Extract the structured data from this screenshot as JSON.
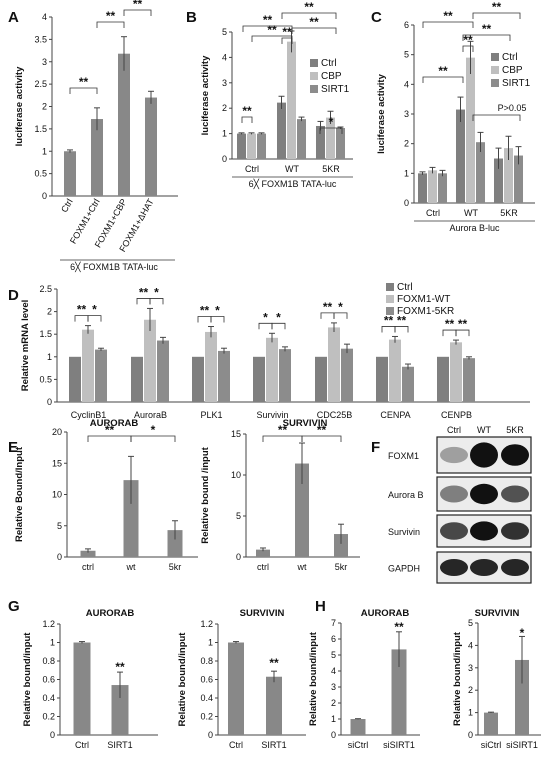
{
  "colors": {
    "dark": "#7f7f7f",
    "light": "#bfbfbf",
    "mid": "#8c8c8c",
    "plain": "#888888"
  },
  "chart_data": [
    {
      "id": "A",
      "type": "bar",
      "panel_label": "A",
      "ylabel": "luciferase activity",
      "ylim": [
        0,
        4
      ],
      "yticks": [
        "0",
        "0.5",
        "1",
        "1.5",
        "2",
        "2.5",
        "3",
        "3.5",
        "4"
      ],
      "categories": [
        "Ctrl",
        "FOXM1+Ctrl",
        "FOXM1+CBP",
        "FOXM1+ΔHAT"
      ],
      "values": [
        1.0,
        1.72,
        3.18,
        2.2
      ],
      "errors": [
        0.03,
        0.25,
        0.38,
        0.14
      ],
      "footer": "6╳ FOXM1B TATA-luc",
      "sig": [
        "**",
        "**",
        "**"
      ]
    },
    {
      "id": "B",
      "type": "bar",
      "panel_label": "B",
      "ylabel": "luciferase activity",
      "ylim": [
        0,
        5
      ],
      "yticks": [
        "0",
        "1",
        "2",
        "3",
        "4",
        "5"
      ],
      "groups": [
        "Ctrl",
        "WT",
        "5KR"
      ],
      "series": [
        {
          "name": "Ctrl",
          "values": [
            1.0,
            2.22,
            1.3
          ]
        },
        {
          "name": "CBP",
          "values": [
            1.0,
            4.62,
            1.63
          ]
        },
        {
          "name": "SIRT1",
          "values": [
            1.0,
            1.57,
            1.22
          ]
        }
      ],
      "errors": [
        [
          0.03,
          0.25,
          0.18
        ],
        [
          0.03,
          0.42,
          0.25
        ],
        [
          0.03,
          0.08,
          0.04
        ]
      ],
      "footer": "6╳ FOXM1B TATA-luc",
      "sig": [
        "**",
        "**",
        "**",
        "**",
        "**",
        "*"
      ]
    },
    {
      "id": "C",
      "type": "bar",
      "panel_label": "C",
      "ylabel": "luciferase activity",
      "ylim": [
        0,
        6
      ],
      "yticks": [
        "0",
        "1",
        "2",
        "3",
        "4",
        "5",
        "6"
      ],
      "groups": [
        "Ctrl",
        "WT",
        "5KR"
      ],
      "series": [
        {
          "name": "Ctrl",
          "values": [
            1.0,
            3.15,
            1.5
          ]
        },
        {
          "name": "CBP",
          "values": [
            1.1,
            4.9,
            1.85
          ]
        },
        {
          "name": "SIRT1",
          "values": [
            1.0,
            2.05,
            1.6
          ]
        }
      ],
      "errors": [
        [
          0.05,
          0.42,
          0.35
        ],
        [
          0.1,
          0.55,
          0.4
        ],
        [
          0.1,
          0.33,
          0.3
        ]
      ],
      "footer": "Aurora B-luc",
      "sig": [
        "**",
        "**",
        "**",
        "**",
        "**"
      ],
      "ns": "P>0.05"
    },
    {
      "id": "D",
      "type": "bar",
      "panel_label": "D",
      "ylabel": "Relative mRNA level",
      "ylim": [
        0,
        2.5
      ],
      "yticks": [
        "0",
        "0.5",
        "1",
        "1.5",
        "2",
        "2.5"
      ],
      "groups": [
        "CyclinB1",
        "AuroraB",
        "PLK1",
        "Survivin",
        "CDC25B",
        "CENPA",
        "CENPB"
      ],
      "series": [
        {
          "name": "Ctrl",
          "values": [
            1,
            1,
            1,
            1,
            1,
            1,
            1
          ]
        },
        {
          "name": "FOXM1-WT",
          "values": [
            1.6,
            1.82,
            1.55,
            1.42,
            1.65,
            1.38,
            1.32
          ]
        },
        {
          "name": "FOXM1-5KR",
          "values": [
            1.16,
            1.36,
            1.13,
            1.17,
            1.18,
            0.78,
            0.97
          ]
        }
      ],
      "errors": [
        [
          0,
          0,
          0,
          0,
          0,
          0,
          0
        ],
        [
          0.09,
          0.25,
          0.12,
          0.1,
          0.1,
          0.07,
          0.05
        ],
        [
          0.03,
          0.07,
          0.06,
          0.05,
          0.1,
          0.06,
          0.03
        ]
      ],
      "sig": [
        "**",
        "*",
        "**",
        "*",
        "**",
        "*",
        "*",
        "*",
        "**",
        "*",
        "**",
        "**",
        "**",
        "**"
      ]
    },
    {
      "id": "E1",
      "type": "bar",
      "panel_label": "E",
      "title": "AURORAB",
      "ylabel": "Relative Bound/Input",
      "ylim": [
        0,
        20
      ],
      "yticks": [
        "0",
        "5",
        "10",
        "15",
        "20"
      ],
      "categories": [
        "ctrl",
        "wt",
        "5kr"
      ],
      "values": [
        1,
        12.3,
        4.3
      ],
      "errors": [
        0.3,
        3.8,
        1.5
      ],
      "sig": [
        "**",
        "*"
      ]
    },
    {
      "id": "E2",
      "type": "bar",
      "title": "SURVIVIN",
      "ylabel": "Relative bound /input",
      "ylim": [
        0,
        15
      ],
      "yticks": [
        "0",
        "5",
        "10",
        "15"
      ],
      "categories": [
        "ctrl",
        "wt",
        "5kr"
      ],
      "values": [
        0.9,
        11.4,
        2.8
      ],
      "errors": [
        0.2,
        2.5,
        1.2
      ],
      "sig": [
        "**",
        "**"
      ]
    },
    {
      "id": "G1",
      "type": "bar",
      "panel_label": "G",
      "title": "AURORAB",
      "ylabel": "Relative bound/input",
      "ylim": [
        0,
        1.2
      ],
      "yticks": [
        "0",
        "0.2",
        "0.4",
        "0.6",
        "0.8",
        "1",
        "1.2"
      ],
      "categories": [
        "Ctrl",
        "SIRT1"
      ],
      "values": [
        1.0,
        0.54
      ],
      "errors": [
        0.01,
        0.14
      ],
      "sig": [
        "**"
      ]
    },
    {
      "id": "G2",
      "type": "bar",
      "title": "SURVIVIN",
      "ylabel": "Relative bound/input",
      "ylim": [
        0,
        1.2
      ],
      "yticks": [
        "0",
        "0.2",
        "0.4",
        "0.6",
        "0.8",
        "1",
        "1.2"
      ],
      "categories": [
        "Ctrl",
        "SIRT1"
      ],
      "values": [
        1.0,
        0.63
      ],
      "errors": [
        0.01,
        0.06
      ],
      "sig": [
        "**"
      ]
    },
    {
      "id": "H1",
      "type": "bar",
      "panel_label": "H",
      "title": "AURORAB",
      "ylabel": "Relative bound/input",
      "ylim": [
        0,
        7
      ],
      "yticks": [
        "0",
        "1",
        "2",
        "3",
        "4",
        "5",
        "6",
        "7"
      ],
      "categories": [
        "siCtrl",
        "siSIRT1"
      ],
      "values": [
        1.0,
        5.35
      ],
      "errors": [
        0.02,
        1.1
      ],
      "sig": [
        "**"
      ]
    },
    {
      "id": "H2",
      "type": "bar",
      "title": "SURVIVIN",
      "ylabel": "Relative bound/input",
      "ylim": [
        0,
        5
      ],
      "yticks": [
        "0",
        "1",
        "2",
        "3",
        "4",
        "5"
      ],
      "categories": [
        "siCtrl",
        "siSIRT1"
      ],
      "values": [
        1.0,
        3.35
      ],
      "errors": [
        0.02,
        1.05
      ],
      "sig": [
        "*"
      ]
    }
  ],
  "blot": {
    "panel_label": "F",
    "lanes": [
      "Ctrl",
      "WT",
      "5KR"
    ],
    "proteins": [
      "FOXM1",
      "Aurora B",
      "Survivin",
      "GAPDH"
    ]
  }
}
